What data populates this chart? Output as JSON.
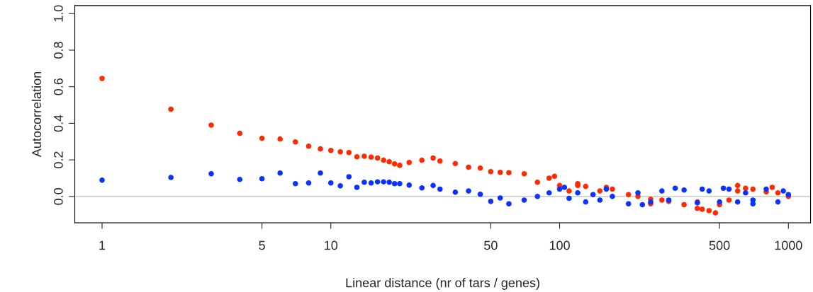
{
  "chart_data": {
    "type": "scatter",
    "xlabel": "Linear distance (nr of tars / genes)",
    "ylabel": "Autocorrelation",
    "log": "x",
    "xlim": [
      0.76,
      1250
    ],
    "xticks": [
      1,
      5,
      10,
      50,
      100,
      500,
      1000
    ],
    "ylim": [
      -0.144,
      1.044
    ],
    "yticks": [
      {
        "value": 0,
        "label": "0.0"
      },
      {
        "value": 0.2,
        "label": "0.2"
      },
      {
        "value": 0.4,
        "label": "0.4"
      },
      {
        "value": 0.6,
        "label": "0.6"
      },
      {
        "value": 0.8,
        "label": "0.8"
      },
      {
        "value": 1,
        "label": "1.0"
      }
    ],
    "grid": false,
    "legend": false,
    "marker": "circle",
    "ref_lines": [
      {
        "axis": "y",
        "value": 0,
        "color": "#bbbbbb"
      }
    ],
    "series": [
      {
        "color": "#ff2a00",
        "x": [
          1,
          2,
          3,
          4,
          5,
          6,
          7,
          8,
          9,
          10,
          11,
          12,
          13,
          14,
          15,
          16,
          17,
          18,
          19,
          20,
          22,
          25,
          28,
          30,
          35,
          40,
          45,
          50,
          55,
          60,
          70,
          80,
          90,
          95,
          100,
          110,
          120,
          130,
          150,
          170,
          200,
          220,
          250,
          280,
          300,
          350,
          400,
          420,
          450,
          480,
          500,
          550,
          600,
          650,
          700,
          800,
          850,
          900,
          1000,
          120,
          160,
          250,
          400,
          600
        ],
        "values": [
          0.645,
          0.477,
          0.39,
          0.345,
          0.318,
          0.314,
          0.298,
          0.275,
          0.26,
          0.252,
          0.244,
          0.24,
          0.217,
          0.22,
          0.215,
          0.21,
          0.198,
          0.19,
          0.178,
          0.17,
          0.186,
          0.198,
          0.21,
          0.194,
          0.18,
          0.16,
          0.155,
          0.136,
          0.132,
          0.13,
          0.124,
          0.078,
          0.1,
          0.11,
          0.06,
          0.03,
          0.06,
          0.055,
          0.03,
          0.04,
          0.01,
          0.0,
          -0.015,
          -0.02,
          -0.027,
          -0.045,
          -0.065,
          -0.07,
          -0.078,
          -0.09,
          -0.045,
          -0.02,
          0.03,
          0.045,
          0.04,
          0.025,
          0.05,
          0.02,
          0.0,
          0.07,
          0.05,
          -0.04,
          -0.03,
          0.06
        ]
      },
      {
        "color": "#0a33ff",
        "x": [
          1,
          2,
          3,
          4,
          5,
          6,
          7,
          8,
          9,
          10,
          11,
          12,
          13,
          14,
          15,
          16,
          17,
          18,
          19,
          20,
          22,
          25,
          28,
          30,
          35,
          40,
          45,
          50,
          55,
          60,
          70,
          80,
          90,
          100,
          110,
          120,
          130,
          140,
          150,
          170,
          200,
          220,
          250,
          280,
          300,
          350,
          400,
          450,
          500,
          550,
          600,
          650,
          700,
          800,
          900,
          1000,
          105,
          160,
          230,
          320,
          420,
          520,
          700,
          950
        ],
        "values": [
          0.089,
          0.104,
          0.124,
          0.093,
          0.097,
          0.128,
          0.07,
          0.074,
          0.128,
          0.074,
          0.058,
          0.108,
          0.05,
          0.078,
          0.074,
          0.08,
          0.08,
          0.078,
          0.07,
          0.07,
          0.062,
          0.047,
          0.06,
          0.04,
          0.023,
          0.03,
          0.012,
          -0.027,
          -0.008,
          -0.04,
          -0.02,
          0.0,
          0.02,
          0.04,
          -0.01,
          0.02,
          -0.03,
          0.01,
          -0.02,
          0.0,
          -0.04,
          0.02,
          -0.03,
          0.03,
          -0.02,
          0.035,
          -0.035,
          0.03,
          -0.03,
          0.04,
          -0.03,
          0.02,
          -0.02,
          0.04,
          -0.03,
          0.01,
          0.05,
          0.04,
          -0.045,
          0.045,
          0.04,
          0.045,
          -0.04,
          0.03
        ]
      }
    ]
  }
}
